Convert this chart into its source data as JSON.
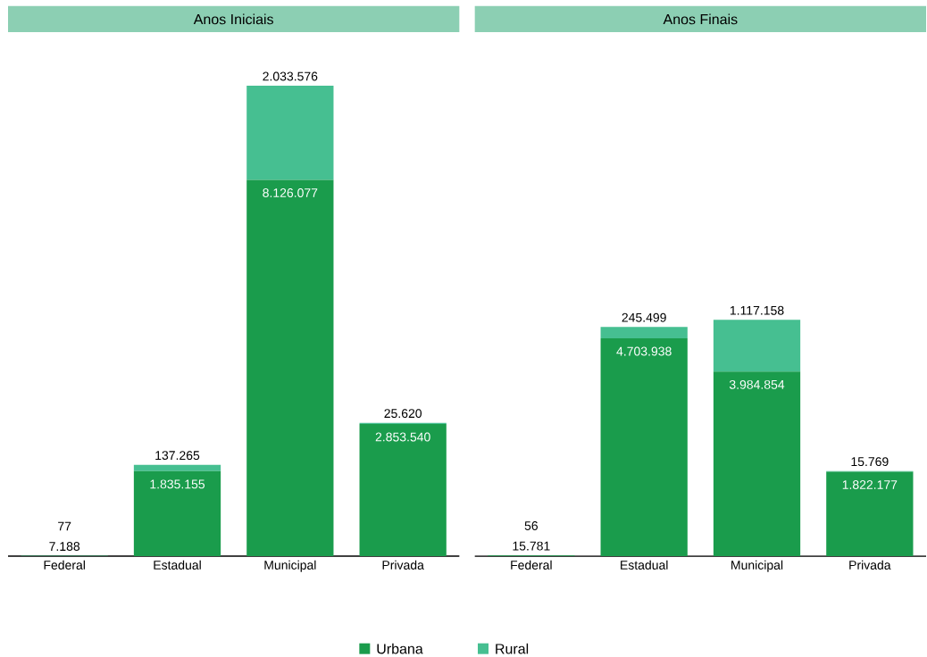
{
  "chart_data": [
    {
      "type": "bar",
      "title": "Anos Iniciais",
      "categories": [
        "Federal",
        "Estadual",
        "Municipal",
        "Privada"
      ],
      "stacked": true,
      "legend": "bottom",
      "series": [
        {
          "name": "Urbana",
          "color": "#1a9c4c",
          "values": [
            7188,
            1835155,
            8126077,
            2853540
          ],
          "value_labels": [
            "7.188",
            "1.835.155",
            "8.126.077",
            "2.853.540"
          ]
        },
        {
          "name": "Rural",
          "color": "#46bf91",
          "values": [
            77,
            137265,
            2033576,
            25620
          ],
          "value_labels": [
            "77",
            "137.265",
            "2.033.576",
            "25.620"
          ]
        }
      ]
    },
    {
      "type": "bar",
      "title": "Anos Finais",
      "categories": [
        "Federal",
        "Estadual",
        "Municipal",
        "Privada"
      ],
      "stacked": true,
      "series": [
        {
          "color": "#1a9c4c",
          "values": [
            15781,
            4703938,
            3984854,
            1822177
          ],
          "value_labels": [
            "15.781",
            "4.703.938",
            "3.984.854",
            "1.822.177"
          ]
        },
        {
          "color": "#46bf91",
          "values": [
            56,
            245499,
            1117158,
            15769
          ],
          "value_labels": [
            "56",
            "245.499",
            "1.117.158",
            "15.769"
          ]
        }
      ]
    }
  ]
}
